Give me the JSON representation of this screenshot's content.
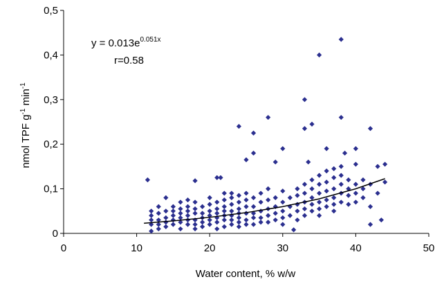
{
  "chart_data": {
    "type": "scatter",
    "x_label": "Water content, % w/w",
    "y_label_parts": [
      {
        "text": "nmol TPF g"
      },
      {
        "text": "-1",
        "sup": true
      },
      {
        "text": " min"
      },
      {
        "text": "-1",
        "sup": true
      }
    ],
    "equation": "y = 0.013e",
    "equation_exponent": "0.051x",
    "r_label": "r=0.58",
    "xlim": [
      0,
      50
    ],
    "ylim": [
      0,
      0.5
    ],
    "xticks": [
      0,
      10,
      20,
      30,
      40,
      50
    ],
    "yticks": [
      0,
      {
        "value": 0.1,
        "label": "0,1"
      },
      {
        "value": 0.2,
        "label": "0,2"
      },
      {
        "value": 0.3,
        "label": "0,3"
      },
      {
        "value": 0.4,
        "label": "0,4"
      },
      {
        "value": 0.5,
        "label": "0,5"
      }
    ],
    "points": {
      "color": "#2b2f8f",
      "x": [
        12,
        12,
        12,
        12,
        13,
        13,
        13,
        13,
        13,
        14,
        14,
        14,
        14,
        14,
        15,
        15,
        15,
        15,
        15,
        16,
        16,
        16,
        16,
        16,
        16,
        17,
        17,
        17,
        17,
        17,
        17,
        18,
        18,
        18,
        18,
        18,
        18,
        19,
        19,
        19,
        19,
        19,
        20,
        20,
        20,
        20,
        20,
        20,
        21,
        21,
        21,
        21,
        21,
        21,
        22,
        22,
        22,
        22,
        22,
        22,
        22,
        23,
        23,
        23,
        23,
        23,
        23,
        23,
        24,
        24,
        24,
        24,
        24,
        24,
        24,
        25,
        25,
        25,
        25,
        25,
        25,
        26,
        26,
        26,
        26,
        26,
        27,
        27,
        27,
        27,
        27,
        28,
        28,
        28,
        28,
        28,
        29,
        29,
        29,
        29,
        30,
        30,
        30,
        30,
        31,
        31,
        32,
        32,
        32,
        32,
        32,
        33,
        33,
        33,
        33,
        33,
        34,
        34,
        34,
        34,
        34,
        35,
        35,
        35,
        35,
        35,
        35,
        36,
        36,
        36,
        36,
        36,
        37,
        37,
        37,
        37,
        37,
        37,
        38,
        38,
        38,
        38,
        38,
        39,
        39,
        39,
        39,
        40,
        40,
        40,
        41,
        41,
        42,
        42,
        11.5,
        18,
        21,
        21.5,
        24,
        25,
        26,
        26,
        28,
        29,
        30,
        31,
        33,
        33,
        34,
        35,
        33.5,
        36,
        38,
        38,
        38.5,
        40,
        42,
        42,
        43,
        44,
        44,
        43.5,
        43,
        40,
        41,
        12,
        31.5,
        30
      ],
      "values": [
        0.04,
        0.03,
        0.02,
        0.05,
        0.045,
        0.03,
        0.02,
        0.01,
        0.06,
        0.08,
        0.05,
        0.035,
        0.025,
        0.015,
        0.05,
        0.04,
        0.03,
        0.02,
        0.06,
        0.055,
        0.045,
        0.035,
        0.025,
        0.01,
        0.07,
        0.05,
        0.04,
        0.03,
        0.02,
        0.06,
        0.075,
        0.055,
        0.045,
        0.03,
        0.02,
        0.01,
        0.07,
        0.06,
        0.045,
        0.035,
        0.025,
        0.015,
        0.065,
        0.05,
        0.04,
        0.03,
        0.02,
        0.08,
        0.07,
        0.055,
        0.045,
        0.035,
        0.025,
        0.01,
        0.075,
        0.06,
        0.05,
        0.04,
        0.03,
        0.015,
        0.09,
        0.08,
        0.065,
        0.05,
        0.04,
        0.03,
        0.02,
        0.09,
        0.085,
        0.07,
        0.055,
        0.045,
        0.035,
        0.025,
        0.015,
        0.09,
        0.075,
        0.06,
        0.045,
        0.03,
        0.02,
        0.08,
        0.06,
        0.045,
        0.035,
        0.02,
        0.09,
        0.07,
        0.05,
        0.035,
        0.025,
        0.1,
        0.075,
        0.055,
        0.04,
        0.025,
        0.08,
        0.06,
        0.045,
        0.03,
        0.095,
        0.07,
        0.05,
        0.035,
        0.06,
        0.04,
        0.1,
        0.085,
        0.065,
        0.05,
        0.03,
        0.11,
        0.09,
        0.07,
        0.055,
        0.04,
        0.12,
        0.1,
        0.08,
        0.065,
        0.05,
        0.13,
        0.11,
        0.09,
        0.07,
        0.055,
        0.04,
        0.14,
        0.115,
        0.095,
        0.075,
        0.06,
        0.145,
        0.125,
        0.1,
        0.08,
        0.065,
        0.05,
        0.15,
        0.13,
        0.11,
        0.09,
        0.07,
        0.12,
        0.1,
        0.085,
        0.065,
        0.11,
        0.09,
        0.07,
        0.1,
        0.08,
        0.11,
        0.06,
        0.12,
        0.118,
        0.125,
        0.125,
        0.24,
        0.165,
        0.225,
        0.18,
        0.26,
        0.16,
        0.19,
        0.08,
        0.3,
        0.235,
        0.245,
        0.4,
        0.16,
        0.19,
        0.435,
        0.26,
        0.18,
        0.19,
        0.235,
        0.02,
        0.15,
        0.155,
        0.115,
        0.03,
        0.09,
        0.155,
        0.12,
        0.005,
        0.008,
        0.02
      ]
    },
    "trendline": {
      "color": "#000000",
      "x": [
        11,
        15,
        20,
        25,
        30,
        35,
        40,
        44
      ],
      "values": [
        0.0228,
        0.028,
        0.036,
        0.0465,
        0.06,
        0.0775,
        0.1,
        0.1227
      ]
    }
  }
}
